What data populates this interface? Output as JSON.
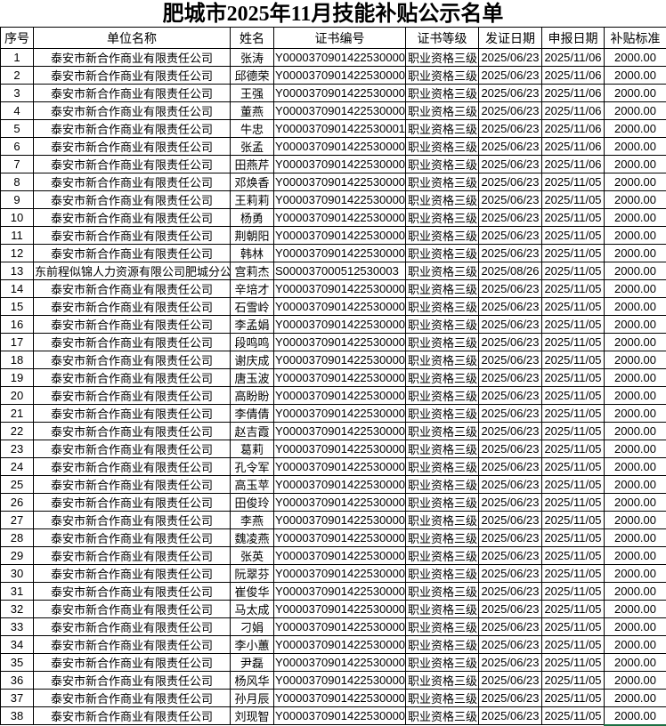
{
  "title": "肥城市2025年11月技能补贴公示名单",
  "colors": {
    "grid_line": "#000000",
    "selection_green": "#1d7044",
    "background": "#ffffff"
  },
  "table": {
    "field_names": [
      "no",
      "company",
      "name",
      "cert_no",
      "cert_level",
      "issue_date",
      "apply_date",
      "subsidy"
    ],
    "headers": [
      "序号",
      "单位名称",
      "姓名",
      "证书编号",
      "证书等级",
      "发证日期",
      "申报日期",
      "补贴标准"
    ],
    "rows": [
      [
        "1",
        "泰安市新合作商业有限责任公司",
        "张涛",
        "Y0000370901422530000",
        "职业资格三级",
        "2025/06/23",
        "2025/11/06",
        "2000.00"
      ],
      [
        "2",
        "泰安市新合作商业有限责任公司",
        "邱德荣",
        "Y0000370901422530000",
        "职业资格三级",
        "2025/06/23",
        "2025/11/06",
        "2000.00"
      ],
      [
        "3",
        "泰安市新合作商业有限责任公司",
        "王强",
        "Y0000370901422530000",
        "职业资格三级",
        "2025/06/23",
        "2025/11/06",
        "2000.00"
      ],
      [
        "4",
        "泰安市新合作商业有限责任公司",
        "董燕",
        "Y0000370901422530000",
        "职业资格三级",
        "2025/06/23",
        "2025/11/06",
        "2000.00"
      ],
      [
        "5",
        "泰安市新合作商业有限责任公司",
        "牛忠",
        "Y0000370901422530001",
        "职业资格三级",
        "2025/06/23",
        "2025/11/06",
        "2000.00"
      ],
      [
        "6",
        "泰安市新合作商业有限责任公司",
        "张孟",
        "Y0000370901422530000",
        "职业资格三级",
        "2025/06/23",
        "2025/11/06",
        "2000.00"
      ],
      [
        "7",
        "泰安市新合作商业有限责任公司",
        "田燕芹",
        "Y0000370901422530000",
        "职业资格三级",
        "2025/06/23",
        "2025/11/06",
        "2000.00"
      ],
      [
        "8",
        "泰安市新合作商业有限责任公司",
        "邓焕香",
        "Y0000370901422530000",
        "职业资格三级",
        "2025/06/23",
        "2025/11/05",
        "2000.00"
      ],
      [
        "9",
        "泰安市新合作商业有限责任公司",
        "王莉莉",
        "Y0000370901422530000",
        "职业资格三级",
        "2025/06/23",
        "2025/11/05",
        "2000.00"
      ],
      [
        "10",
        "泰安市新合作商业有限责任公司",
        "杨勇",
        "Y0000370901422530000",
        "职业资格三级",
        "2025/06/23",
        "2025/11/05",
        "2000.00"
      ],
      [
        "11",
        "泰安市新合作商业有限责任公司",
        "荆朝阳",
        "Y0000370901422530000",
        "职业资格三级",
        "2025/06/23",
        "2025/11/05",
        "2000.00"
      ],
      [
        "12",
        "泰安市新合作商业有限责任公司",
        "韩林",
        "Y0000370901422530000",
        "职业资格三级",
        "2025/06/23",
        "2025/11/05",
        "2000.00"
      ],
      [
        "13",
        "东前程似锦人力资源有限公司肥城分公",
        "宫莉杰",
        "S000037000512530003",
        "职业资格三级",
        "2025/08/26",
        "2025/11/05",
        "2000.00"
      ],
      [
        "14",
        "泰安市新合作商业有限责任公司",
        "辛培才",
        "Y0000370901422530000",
        "职业资格三级",
        "2025/06/23",
        "2025/11/05",
        "2000.00"
      ],
      [
        "15",
        "泰安市新合作商业有限责任公司",
        "石雪岭",
        "Y0000370901422530000",
        "职业资格三级",
        "2025/06/23",
        "2025/11/05",
        "2000.00"
      ],
      [
        "16",
        "泰安市新合作商业有限责任公司",
        "李孟娟",
        "Y0000370901422530000",
        "职业资格三级",
        "2025/06/23",
        "2025/11/05",
        "2000.00"
      ],
      [
        "17",
        "泰安市新合作商业有限责任公司",
        "段鸣鸣",
        "Y0000370901422530000",
        "职业资格三级",
        "2025/06/23",
        "2025/11/05",
        "2000.00"
      ],
      [
        "18",
        "泰安市新合作商业有限责任公司",
        "谢庆成",
        "Y0000370901422530000",
        "职业资格三级",
        "2025/06/23",
        "2025/11/05",
        "2000.00"
      ],
      [
        "19",
        "泰安市新合作商业有限责任公司",
        "唐玉波",
        "Y0000370901422530000",
        "职业资格三级",
        "2025/06/23",
        "2025/11/05",
        "2000.00"
      ],
      [
        "20",
        "泰安市新合作商业有限责任公司",
        "高盼盼",
        "Y0000370901422530000",
        "职业资格三级",
        "2025/06/23",
        "2025/11/05",
        "2000.00"
      ],
      [
        "21",
        "泰安市新合作商业有限责任公司",
        "李倩倩",
        "Y0000370901422530000",
        "职业资格三级",
        "2025/06/23",
        "2025/11/05",
        "2000.00"
      ],
      [
        "22",
        "泰安市新合作商业有限责任公司",
        "赵吉霞",
        "Y0000370901422530000",
        "职业资格三级",
        "2025/06/23",
        "2025/11/05",
        "2000.00"
      ],
      [
        "23",
        "泰安市新合作商业有限责任公司",
        "葛莉",
        "Y0000370901422530000",
        "职业资格三级",
        "2025/06/23",
        "2025/11/05",
        "2000.00"
      ],
      [
        "24",
        "泰安市新合作商业有限责任公司",
        "孔令军",
        "Y0000370901422530000",
        "职业资格三级",
        "2025/06/23",
        "2025/11/05",
        "2000.00"
      ],
      [
        "25",
        "泰安市新合作商业有限责任公司",
        "高玉苹",
        "Y0000370901422530000",
        "职业资格三级",
        "2025/06/23",
        "2025/11/05",
        "2000.00"
      ],
      [
        "26",
        "泰安市新合作商业有限责任公司",
        "田俊玲",
        "Y0000370901422530000",
        "职业资格三级",
        "2025/06/23",
        "2025/11/05",
        "2000.00"
      ],
      [
        "27",
        "泰安市新合作商业有限责任公司",
        "李燕",
        "Y0000370901422530000",
        "职业资格三级",
        "2025/06/23",
        "2025/11/05",
        "2000.00"
      ],
      [
        "28",
        "泰安市新合作商业有限责任公司",
        "魏凌燕",
        "Y0000370901422530000",
        "职业资格三级",
        "2025/06/23",
        "2025/11/05",
        "2000.00"
      ],
      [
        "29",
        "泰安市新合作商业有限责任公司",
        "张英",
        "Y0000370901422530000",
        "职业资格三级",
        "2025/06/23",
        "2025/11/05",
        "2000.00"
      ],
      [
        "30",
        "泰安市新合作商业有限责任公司",
        "阮翠芬",
        "Y0000370901422530000",
        "职业资格三级",
        "2025/06/23",
        "2025/11/05",
        "2000.00"
      ],
      [
        "31",
        "泰安市新合作商业有限责任公司",
        "崔俊华",
        "Y0000370901422530000",
        "职业资格三级",
        "2025/06/23",
        "2025/11/05",
        "2000.00"
      ],
      [
        "32",
        "泰安市新合作商业有限责任公司",
        "马太成",
        "Y0000370901422530000",
        "职业资格三级",
        "2025/06/23",
        "2025/11/05",
        "2000.00"
      ],
      [
        "33",
        "泰安市新合作商业有限责任公司",
        "刁娟",
        "Y0000370901422530000",
        "职业资格三级",
        "2025/06/23",
        "2025/11/05",
        "2000.00"
      ],
      [
        "34",
        "泰安市新合作商业有限责任公司",
        "李小蕙",
        "Y0000370901422530000",
        "职业资格三级",
        "2025/06/23",
        "2025/11/05",
        "2000.00"
      ],
      [
        "35",
        "泰安市新合作商业有限责任公司",
        "尹磊",
        "Y0000370901422530000",
        "职业资格三级",
        "2025/06/23",
        "2025/11/05",
        "2000.00"
      ],
      [
        "36",
        "泰安市新合作商业有限责任公司",
        "杨风华",
        "Y0000370901422530000",
        "职业资格三级",
        "2025/06/23",
        "2025/11/05",
        "2000.00"
      ],
      [
        "37",
        "泰安市新合作商业有限责任公司",
        "孙月辰",
        "Y0000370901422530000",
        "职业资格三级",
        "2025/06/23",
        "2025/11/05",
        "2000.00"
      ],
      [
        "38",
        "泰安市新合作商业有限责任公司",
        "刘现智",
        "Y0000370901422530000",
        "职业资格三级",
        "2025/06/23",
        "2025/11/05",
        "2000.00"
      ]
    ]
  }
}
